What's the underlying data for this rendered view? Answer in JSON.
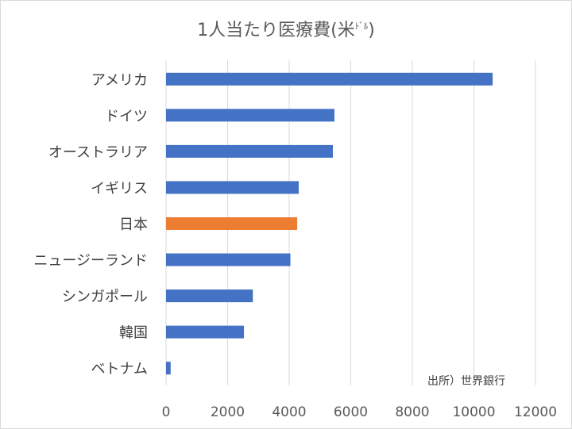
{
  "chart_data": {
    "type": "bar",
    "orientation": "horizontal",
    "title": "1人当たり医療費(米",
    "title_unit_small": "ﾄﾞﾙ",
    "title_close": ")",
    "categories": [
      "アメリカ",
      "ドイツ",
      "オーストラリア",
      "イギリス",
      "日本",
      "ニュージーランド",
      "シンガポール",
      "韓国",
      "ベトナム"
    ],
    "values": [
      10610,
      5470,
      5420,
      4310,
      4260,
      4040,
      2820,
      2530,
      150
    ],
    "highlight_category": "日本",
    "xlim": [
      0,
      12000
    ],
    "xticks": [
      0,
      2000,
      4000,
      6000,
      8000,
      10000,
      12000
    ],
    "grid": true,
    "colors": {
      "default": "#4472C4",
      "highlight": "#ED7D31",
      "grid": "#d9d9d9"
    },
    "annotation": "出所）世界銀行",
    "xlabel": "",
    "ylabel": ""
  }
}
